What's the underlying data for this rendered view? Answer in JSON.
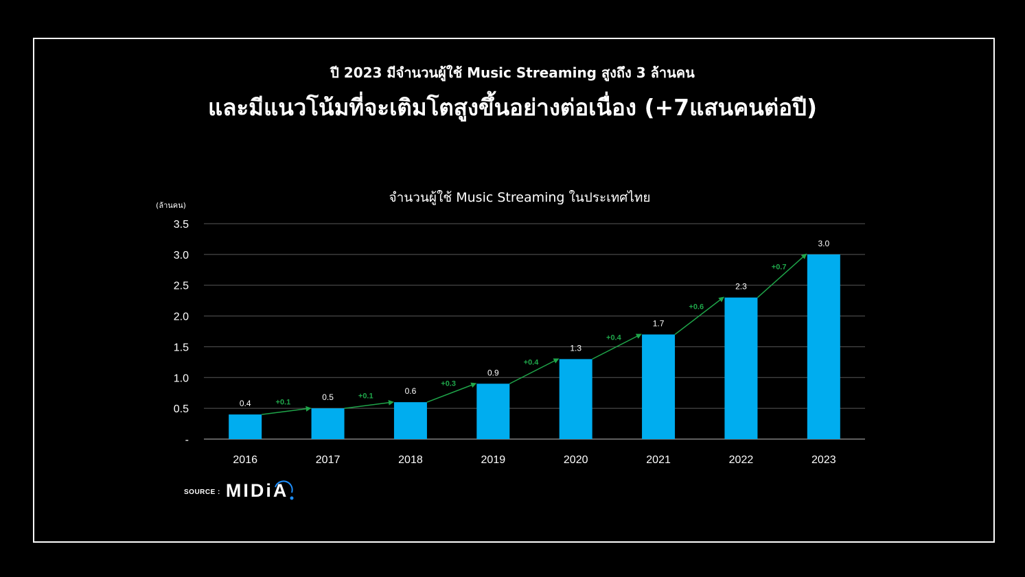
{
  "headline": {
    "line1": "ปี 2023 มีจำนวนผู้ใช้ Music Streaming สูงถึง 3 ล้านคน",
    "line2": "และมีแนวโน้มที่จะเติมโตสูงขึ้นอย่างต่อเนื่อง (+7แสนคนต่อปี)"
  },
  "colors": {
    "background": "#000000",
    "bar": "#00adef",
    "growth": "#1fa64a",
    "grid": "#595959",
    "text": "#ffffff"
  },
  "chart_data": {
    "type": "bar",
    "title": "จำนวนผู้ใช้ Music Streaming ในประเทศไทย",
    "ylabel": "(ล้านคน)",
    "xlabel": "",
    "categories": [
      "2016",
      "2017",
      "2018",
      "2019",
      "2020",
      "2021",
      "2022",
      "2023"
    ],
    "values": [
      0.4,
      0.5,
      0.6,
      0.9,
      1.3,
      1.7,
      2.3,
      3.0
    ],
    "value_labels": [
      "0.4",
      "0.5",
      "0.6",
      "0.9",
      "1.3",
      "1.7",
      "2.3",
      "3.0"
    ],
    "growth_labels": [
      "+0.1",
      "+0.1",
      "+0.3",
      "+0.4",
      "+0.4",
      "+0.6",
      "+0.7"
    ],
    "ylim": [
      0,
      3.5
    ],
    "yticks": [
      0,
      0.5,
      1.0,
      1.5,
      2.0,
      2.5,
      3.0,
      3.5
    ],
    "ytick_labels": [
      "-",
      "0.5",
      "1.0",
      "1.5",
      "2.0",
      "2.5",
      "3.0",
      "3.5"
    ],
    "grid": true,
    "legend": "none"
  },
  "source": {
    "label": "SOURCE :",
    "logo": "MIDiA"
  }
}
